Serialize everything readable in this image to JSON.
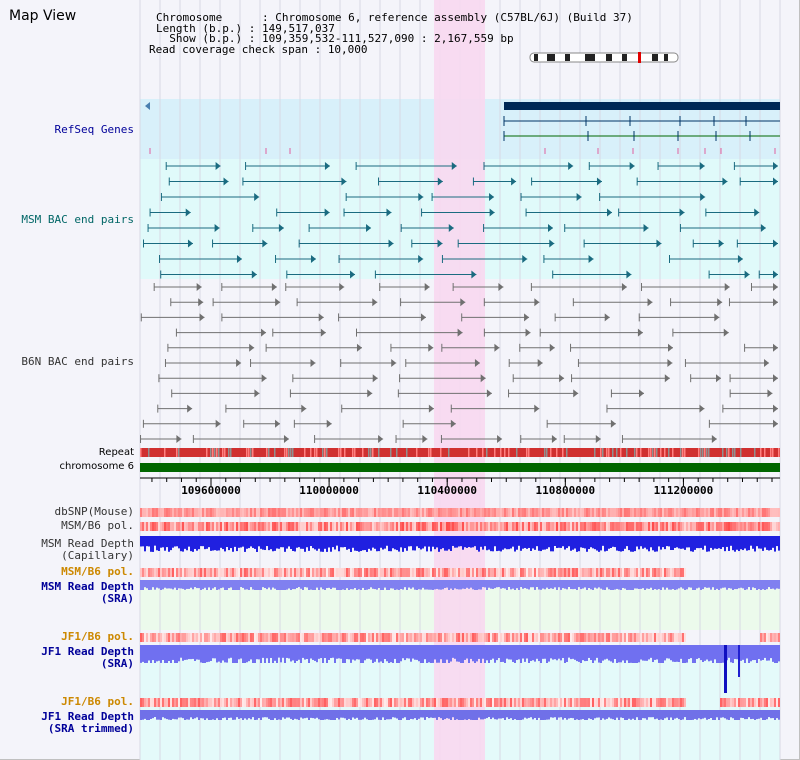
{
  "view_title": "Map View",
  "info": {
    "chromosome_key": "Chromosome      : ",
    "chromosome_value": "Chromosome 6, reference assembly (C57BL/6J) (Build 37)",
    "length_key": "Length (b.p.) : ",
    "length_value": "149,517,037",
    "show_key": "  Show (b.p.) : ",
    "show_value": "109,359,532-111,527,090 : 2,167,559 bp",
    "coverage_key": "Read coverage check span : ",
    "coverage_value": "10,000"
  },
  "tracks": {
    "refseq": "RefSeq Genes",
    "msm_bac": "MSM BAC end pairs",
    "b6n_bac": "B6N BAC end pairs",
    "repeat": "Repeat",
    "chromosome": "chromosome 6",
    "dbsnp": "dbSNP(Mouse)",
    "msm_b6_pol_1": "MSM/B6 pol.",
    "msm_read_depth_cap_1": "MSM Read Depth",
    "msm_read_depth_cap_2": "(Capillary)",
    "msm_b6_pol_2": "MSM/B6 pol.",
    "msm_read_depth_sra_1": "MSM Read Depth",
    "msm_read_depth_sra_2": "(SRA)",
    "jf1_b6_pol_1": "JF1/B6 pol.",
    "jf1_read_depth_sra_1": "JF1 Read Depth",
    "jf1_read_depth_sra_2": "(SRA)",
    "jf1_b6_pol_2": "JF1/B6 pol.",
    "jf1_read_depth_trim_1": "JF1 Read Depth",
    "jf1_read_depth_trim_2": "(SRA trimmed)"
  },
  "axis": {
    "start_bp": 109359532,
    "end_bp": 111527090,
    "ticks": [
      {
        "label": "109600000",
        "bp": 109600000
      },
      {
        "label": "110000000",
        "bp": 110000000
      },
      {
        "label": "110400000",
        "bp": 110400000
      },
      {
        "label": "110800000",
        "bp": 110800000
      },
      {
        "label": "111200000",
        "bp": 111200000
      }
    ]
  },
  "colors": {
    "navy_label": "#000099",
    "teal_label": "#006666",
    "gray_label": "#333333",
    "orange_label": "#cc8800",
    "gene": "#002855",
    "highlight": "#f8d8f0",
    "refseq_bg": "#d8f0fa",
    "bac_bg": "#e0fafa",
    "chrom_bar": "#006600",
    "depth": "#2020e0"
  }
}
